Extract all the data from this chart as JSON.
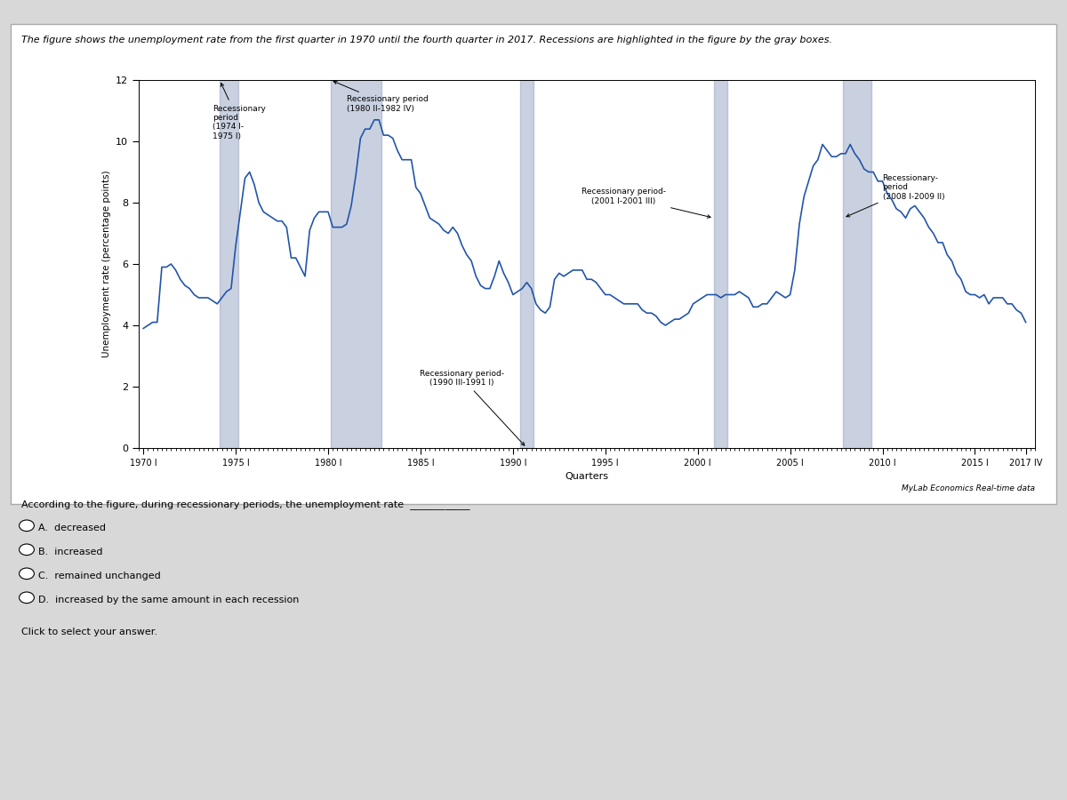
{
  "title": "The figure shows the unemployment rate from the first quarter in 1970 until the fourth quarter in 2017. Recessions are highlighted in the figure by the gray boxes.",
  "ylabel": "Unemployment rate (percentage points)",
  "xlabel": "Quarters",
  "source": "MyLab Economics Real-time data",
  "ylim": [
    0,
    12
  ],
  "yticks": [
    0,
    2,
    4,
    6,
    8,
    10,
    12
  ],
  "xtick_labels": [
    "1970 I",
    "1975 I",
    "1980 I",
    "1985 I",
    "1990 I",
    "1995 I",
    "2000 I",
    "2005 I",
    "2010 I",
    "2015 I",
    "2017 IV"
  ],
  "line_color": "#2255aa",
  "recession_color": "#8899bb",
  "recession_alpha": 0.45,
  "bg_color": "#ffffff",
  "page_bg": "#d8d8d8",
  "chart_bg": "#f5f5f0",
  "question_text": "According to the figure, during recessionary periods, the unemployment rate",
  "options": [
    "A.  decreased",
    "B.  increased",
    "C.  remained unchanged",
    "D.  increased by the same amount in each recession"
  ],
  "click_text": "Click to select your answer.",
  "unemployment_data": [
    3.9,
    4.0,
    4.1,
    4.1,
    5.9,
    5.9,
    6.0,
    5.8,
    5.5,
    5.3,
    5.2,
    5.0,
    4.9,
    4.9,
    4.9,
    4.8,
    4.7,
    4.9,
    5.1,
    5.2,
    6.6,
    7.7,
    8.8,
    9.0,
    8.6,
    8.0,
    7.7,
    7.6,
    7.5,
    7.4,
    7.4,
    7.2,
    6.2,
    6.2,
    5.9,
    5.6,
    7.1,
    7.5,
    7.7,
    7.7,
    7.7,
    7.2,
    7.2,
    7.2,
    7.3,
    7.9,
    8.9,
    10.1,
    10.4,
    10.4,
    10.7,
    10.7,
    10.2,
    10.2,
    10.1,
    9.7,
    9.4,
    9.4,
    9.4,
    8.5,
    8.3,
    7.9,
    7.5,
    7.4,
    7.3,
    7.1,
    7.0,
    7.2,
    7.0,
    6.6,
    6.3,
    6.1,
    5.6,
    5.3,
    5.2,
    5.2,
    5.6,
    6.1,
    5.7,
    5.4,
    5.0,
    5.1,
    5.2,
    5.4,
    5.2,
    4.7,
    4.5,
    4.4,
    4.6,
    5.5,
    5.7,
    5.6,
    5.7,
    5.8,
    5.8,
    5.8,
    5.5,
    5.5,
    5.4,
    5.2,
    5.0,
    5.0,
    4.9,
    4.8,
    4.7,
    4.7,
    4.7,
    4.7,
    4.5,
    4.4,
    4.4,
    4.3,
    4.1,
    4.0,
    4.1,
    4.2,
    4.2,
    4.3,
    4.4,
    4.7,
    4.8,
    4.9,
    5.0,
    5.0,
    5.0,
    4.9,
    5.0,
    5.0,
    5.0,
    5.1,
    5.0,
    4.9,
    4.6,
    4.6,
    4.7,
    4.7,
    4.9,
    5.1,
    5.0,
    4.9,
    5.0,
    5.8,
    7.3,
    8.2,
    8.7,
    9.2,
    9.4,
    9.9,
    9.7,
    9.5,
    9.5,
    9.6,
    9.6,
    9.9,
    9.6,
    9.4,
    9.1,
    9.0,
    9.0,
    8.7,
    8.7,
    8.3,
    8.1,
    7.8,
    7.7,
    7.5,
    7.8,
    7.9,
    7.7,
    7.5,
    7.2,
    7.0,
    6.7,
    6.7,
    6.3,
    6.1,
    5.7,
    5.5,
    5.1,
    5.0,
    5.0,
    4.9,
    5.0,
    4.7,
    4.9,
    4.9,
    4.9,
    4.7,
    4.7,
    4.5,
    4.4,
    4.1
  ]
}
